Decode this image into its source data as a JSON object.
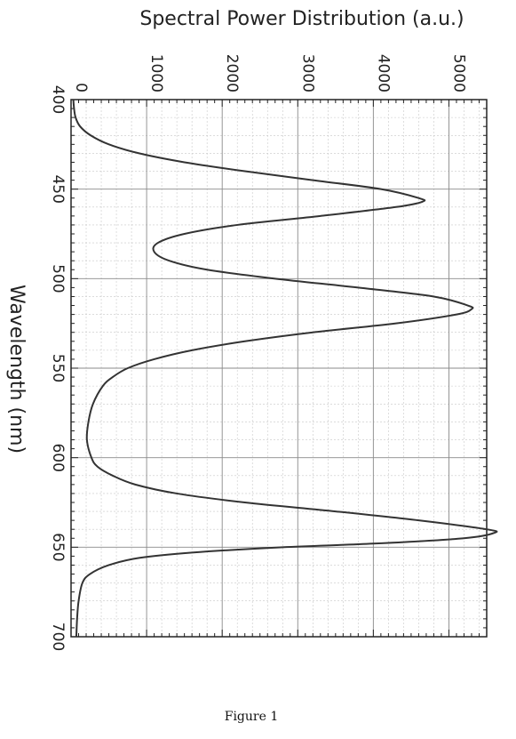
{
  "chart_data": {
    "type": "line",
    "orientation": "rotated-90-clockwise",
    "x_axis": {
      "label": "Wavelength (nm)",
      "range": [
        400,
        700
      ],
      "ticks": [
        400,
        450,
        500,
        550,
        600,
        650,
        700
      ]
    },
    "y_axis": {
      "label": "Spectral Power Distribution (a.u.)",
      "range": [
        0,
        5500
      ],
      "ticks": [
        0,
        1000,
        2000,
        3000,
        4000,
        5000
      ]
    },
    "grid": true,
    "minor_grid": true,
    "series": [
      {
        "color": "#333333",
        "points": [
          [
            400,
            30
          ],
          [
            405,
            40
          ],
          [
            410,
            60
          ],
          [
            415,
            120
          ],
          [
            420,
            260
          ],
          [
            425,
            500
          ],
          [
            430,
            900
          ],
          [
            435,
            1500
          ],
          [
            440,
            2300
          ],
          [
            445,
            3200
          ],
          [
            450,
            4100
          ],
          [
            455,
            4600
          ],
          [
            457,
            4650
          ],
          [
            460,
            4300
          ],
          [
            465,
            3300
          ],
          [
            470,
            2200
          ],
          [
            475,
            1500
          ],
          [
            480,
            1150
          ],
          [
            485,
            1100
          ],
          [
            490,
            1300
          ],
          [
            495,
            1800
          ],
          [
            500,
            2700
          ],
          [
            505,
            3800
          ],
          [
            510,
            4800
          ],
          [
            515,
            5250
          ],
          [
            517,
            5300
          ],
          [
            520,
            5100
          ],
          [
            525,
            4300
          ],
          [
            530,
            3200
          ],
          [
            535,
            2300
          ],
          [
            540,
            1600
          ],
          [
            545,
            1100
          ],
          [
            550,
            750
          ],
          [
            555,
            550
          ],
          [
            560,
            420
          ],
          [
            570,
            290
          ],
          [
            580,
            230
          ],
          [
            590,
            210
          ],
          [
            600,
            270
          ],
          [
            605,
            350
          ],
          [
            610,
            550
          ],
          [
            615,
            850
          ],
          [
            620,
            1400
          ],
          [
            625,
            2300
          ],
          [
            630,
            3500
          ],
          [
            635,
            4600
          ],
          [
            640,
            5500
          ],
          [
            642,
            5600
          ],
          [
            645,
            5200
          ],
          [
            648,
            4000
          ],
          [
            650,
            2800
          ],
          [
            653,
            1600
          ],
          [
            656,
            900
          ],
          [
            660,
            500
          ],
          [
            665,
            250
          ],
          [
            670,
            150
          ],
          [
            680,
            100
          ],
          [
            690,
            80
          ],
          [
            700,
            70
          ]
        ]
      }
    ]
  },
  "figure": {
    "caption": "Figure 1"
  }
}
